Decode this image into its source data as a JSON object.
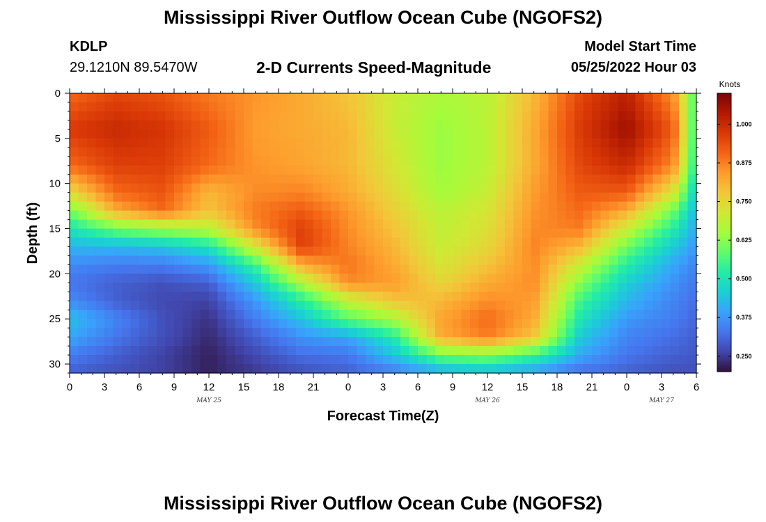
{
  "header": {
    "title": "Mississippi River Outflow Ocean Cube (NGOFS2)",
    "station": "KDLP",
    "coords": "29.1210N  89.5470W",
    "subtitle": "2-D Currents Speed-Magnitude",
    "model_label": "Model Start Time",
    "model_time": "05/25/2022 Hour 03"
  },
  "footer": {
    "title": "Mississippi River Outflow Ocean Cube (NGOFS2)"
  },
  "chart_data": {
    "type": "heatmap",
    "title": "2-D Currents Speed-Magnitude",
    "xlabel": "Forecast Time(Z)",
    "ylabel": "Depth (ft)",
    "x_unit": "hours since forecast start",
    "xlim": [
      0,
      54
    ],
    "ylim": [
      0,
      31
    ],
    "x_ticks": [
      0,
      3,
      6,
      9,
      12,
      15,
      18,
      21,
      24,
      27,
      30,
      33,
      36,
      39,
      42,
      45,
      48,
      51,
      54
    ],
    "x_tick_labels": [
      "0",
      "3",
      "6",
      "9",
      "12",
      "15",
      "18",
      "21",
      "0",
      "3",
      "6",
      "9",
      "12",
      "15",
      "18",
      "21",
      "0",
      "3",
      "6"
    ],
    "date_labels": [
      {
        "x": 12,
        "text": "MAY 25"
      },
      {
        "x": 36,
        "text": "MAY 26"
      },
      {
        "x": 51,
        "text": "MAY 27"
      }
    ],
    "y_ticks": [
      0,
      5,
      10,
      15,
      20,
      25,
      30
    ],
    "y_tick_labels": [
      "0",
      "5",
      "10",
      "15",
      "20",
      "25",
      "30"
    ],
    "colorbar": {
      "unit": "Knots",
      "min": 0.2,
      "max": 1.1,
      "ticks": [
        0.25,
        0.375,
        0.5,
        0.625,
        0.75,
        0.875,
        1.0
      ],
      "tick_labels": [
        "0.250",
        "0.375",
        "0.500",
        "0.625",
        "0.750",
        "0.875",
        "1.000"
      ]
    },
    "grid_depths": [
      0,
      4,
      8,
      11,
      13,
      15,
      17,
      19,
      21,
      23,
      25,
      27,
      29,
      31
    ],
    "grid_times": [
      0,
      4,
      8,
      12,
      16,
      20,
      24,
      28,
      32,
      36,
      40,
      44,
      48,
      52,
      54
    ],
    "values": [
      [
        0.9,
        0.95,
        0.93,
        0.88,
        0.85,
        0.82,
        0.78,
        0.7,
        0.66,
        0.68,
        0.8,
        0.95,
        1.02,
        0.85,
        0.55
      ],
      [
        0.97,
        1.0,
        0.98,
        0.92,
        0.84,
        0.82,
        0.8,
        0.7,
        0.64,
        0.68,
        0.82,
        0.97,
        1.06,
        0.92,
        0.52
      ],
      [
        0.9,
        0.96,
        0.96,
        0.9,
        0.85,
        0.83,
        0.8,
        0.72,
        0.64,
        0.68,
        0.82,
        0.95,
        1.0,
        0.86,
        0.5
      ],
      [
        0.74,
        0.9,
        0.93,
        0.8,
        0.86,
        0.87,
        0.82,
        0.74,
        0.65,
        0.7,
        0.84,
        0.92,
        0.92,
        0.72,
        0.45
      ],
      [
        0.6,
        0.82,
        0.9,
        0.78,
        0.88,
        0.92,
        0.85,
        0.76,
        0.68,
        0.72,
        0.85,
        0.9,
        0.82,
        0.6,
        0.42
      ],
      [
        0.5,
        0.6,
        0.65,
        0.68,
        0.86,
        0.96,
        0.86,
        0.78,
        0.69,
        0.73,
        0.86,
        0.88,
        0.7,
        0.52,
        0.4
      ],
      [
        0.42,
        0.42,
        0.44,
        0.5,
        0.72,
        0.96,
        0.87,
        0.8,
        0.7,
        0.75,
        0.87,
        0.8,
        0.6,
        0.45,
        0.38
      ],
      [
        0.36,
        0.34,
        0.34,
        0.38,
        0.55,
        0.82,
        0.89,
        0.82,
        0.72,
        0.78,
        0.86,
        0.7,
        0.52,
        0.4,
        0.35
      ],
      [
        0.33,
        0.3,
        0.28,
        0.3,
        0.45,
        0.66,
        0.86,
        0.84,
        0.75,
        0.82,
        0.86,
        0.62,
        0.46,
        0.37,
        0.33
      ],
      [
        0.36,
        0.3,
        0.27,
        0.26,
        0.38,
        0.52,
        0.68,
        0.78,
        0.8,
        0.86,
        0.84,
        0.55,
        0.42,
        0.35,
        0.32
      ],
      [
        0.44,
        0.35,
        0.28,
        0.24,
        0.34,
        0.44,
        0.58,
        0.66,
        0.83,
        0.9,
        0.82,
        0.5,
        0.38,
        0.34,
        0.31
      ],
      [
        0.4,
        0.33,
        0.28,
        0.23,
        0.3,
        0.37,
        0.4,
        0.52,
        0.82,
        0.88,
        0.78,
        0.45,
        0.35,
        0.32,
        0.3
      ],
      [
        0.34,
        0.3,
        0.26,
        0.22,
        0.27,
        0.32,
        0.33,
        0.44,
        0.6,
        0.62,
        0.55,
        0.4,
        0.33,
        0.3,
        0.29
      ],
      [
        0.3,
        0.28,
        0.26,
        0.22,
        0.25,
        0.28,
        0.3,
        0.34,
        0.4,
        0.42,
        0.38,
        0.32,
        0.3,
        0.28,
        0.28
      ]
    ]
  }
}
